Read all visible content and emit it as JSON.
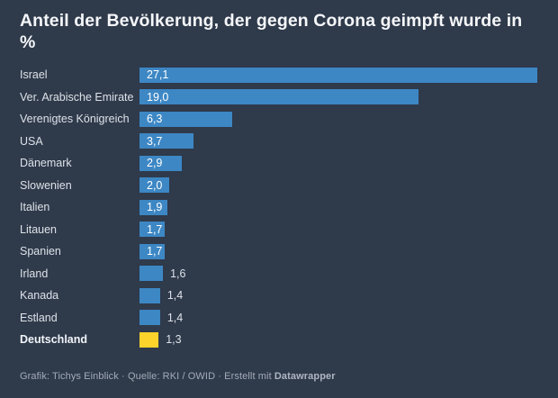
{
  "page": {
    "background_color": "#2f3a4b"
  },
  "chart_data": {
    "type": "bar",
    "orientation": "horizontal",
    "title": "Anteil der Bevölkerung, der gegen Corona geimpft wurde in %",
    "title_line1": "Anteil der Bevölkerung, der gegen Corona geimpft wurde",
    "title_line2": "in %",
    "categories": [
      "Israel",
      "Ver. Arabische Emirate",
      "Verenigtes Königreich",
      "USA",
      "Dänemark",
      "Slowenien",
      "Italien",
      "Litauen",
      "Spanien",
      "Irland",
      "Kanada",
      "Estland",
      "Deutschland"
    ],
    "values": [
      27.1,
      19.0,
      6.3,
      3.7,
      2.9,
      2.0,
      1.9,
      1.7,
      1.7,
      1.6,
      1.4,
      1.4,
      1.3
    ],
    "value_labels": [
      "27,1",
      "19,0",
      "6,3",
      "3,7",
      "2,9",
      "2,0",
      "1,9",
      "1,7",
      "1,7",
      "1,6",
      "1,4",
      "1,4",
      "1,3"
    ],
    "value_label_inside": [
      true,
      true,
      true,
      true,
      true,
      true,
      true,
      true,
      true,
      false,
      false,
      false,
      false
    ],
    "highlight_category": "Deutschland",
    "colors": {
      "bar_default": "#3d87c4",
      "bar_highlight": "#fbd32b",
      "value_inside": "#ffffff",
      "value_outside": "#dde2e8"
    },
    "xlim": [
      0,
      27.1
    ],
    "legend": "none",
    "grid": "off"
  },
  "footer": {
    "prefix": "Grafik: Tichys Einblick · Quelle: RKI / OWID · Erstellt mit ",
    "brand": "Datawrapper"
  }
}
